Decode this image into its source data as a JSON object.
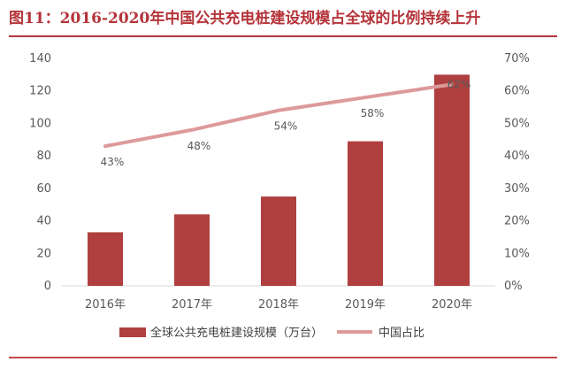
{
  "title": "图11：2016-2020年中国公共充电桩建设规模占全球的比例持续上升",
  "colors": {
    "accent": "#b5343a",
    "bar": "#b0403f",
    "line": "#dd9a9a",
    "axis": "#d9d9d9",
    "text": "#595959"
  },
  "chart_data": {
    "type": "bar+line",
    "categories": [
      "2016年",
      "2017年",
      "2018年",
      "2019年",
      "2020年"
    ],
    "series": [
      {
        "name": "全球公共充电桩建设规模（万台）",
        "type": "bar",
        "axis": "left",
        "values": [
          33,
          44,
          55,
          89,
          130
        ]
      },
      {
        "name": "中国占比",
        "type": "line",
        "axis": "right",
        "values": [
          43,
          48,
          54,
          58,
          62
        ],
        "labels": [
          "43%",
          "48%",
          "54%",
          "58%",
          "62%"
        ]
      }
    ],
    "ylim": [
      0,
      140
    ],
    "yticks": [
      "0",
      "20",
      "40",
      "60",
      "80",
      "100",
      "120",
      "140"
    ],
    "y2lim": [
      0,
      70
    ],
    "y2ticks": [
      "0%",
      "10%",
      "20%",
      "30%",
      "40%",
      "50%",
      "60%",
      "70%"
    ],
    "grid": false,
    "legend": "bottom"
  }
}
